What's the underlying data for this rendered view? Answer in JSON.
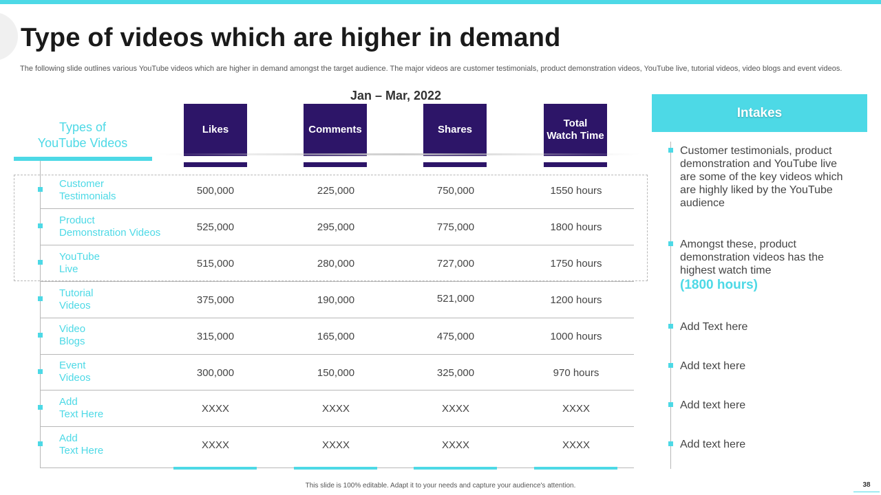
{
  "title": "Type of videos which are higher in demand",
  "subtitle": "The following slide outlines various YouTube videos which are higher in demand amongst the target audience. The major videos are customer testimonials, product demonstration videos, YouTube live, tutorial videos, video blogs and event videos.",
  "period": "Jan – Mar, 2022",
  "table": {
    "row_header": "Types of\nYouTube Videos",
    "columns": [
      "Likes",
      "Comments",
      "Shares",
      "Total\nWatch Time"
    ],
    "rows": [
      {
        "label": "Customer\nTestimonials",
        "values": [
          "500,000",
          "225,000",
          "750,000",
          "1550 hours"
        ]
      },
      {
        "label": "Product\nDemonstration Videos",
        "values": [
          "525,000",
          "295,000",
          "775,000",
          "1800 hours"
        ]
      },
      {
        "label": "YouTube\nLive",
        "values": [
          "515,000",
          "280,000",
          "727,000",
          "1750 hours"
        ]
      },
      {
        "label": "Tutorial\nVideos",
        "values": [
          "375,000",
          "190,000",
          "521,000",
          "1200 hours"
        ]
      },
      {
        "label": "Video\nBlogs",
        "values": [
          "315,000",
          "165,000",
          "475,000",
          "1000 hours"
        ]
      },
      {
        "label": "Event\nVideos",
        "values": [
          "300,000",
          "150,000",
          "325,000",
          "970 hours"
        ]
      },
      {
        "label": "Add\nText Here",
        "values": [
          "XXXX",
          "XXXX",
          "XXXX",
          "XXXX"
        ]
      },
      {
        "label": "Add\nText Here",
        "values": [
          "XXXX",
          "XXXX",
          "XXXX",
          "XXXX"
        ]
      }
    ]
  },
  "intakes": {
    "heading": "Intakes",
    "items": [
      {
        "text": "Customer testimonials, product demonstration and YouTube  live are some of the key videos which are highly liked by the YouTube  audience"
      },
      {
        "text": "Amongst these, product demonstration videos has the highest watch time",
        "highlight": "(1800 hours)"
      },
      {
        "text": "Add Text here"
      },
      {
        "text": "Add text here"
      },
      {
        "text": "Add text here"
      },
      {
        "text": "Add text here"
      }
    ]
  },
  "footer": "This slide is 100% editable. Adapt it to your needs and capture your audience's attention.",
  "page_number": "38",
  "colors": {
    "accent": "#4dd9e6",
    "header": "#2d1568",
    "text": "#333333"
  }
}
